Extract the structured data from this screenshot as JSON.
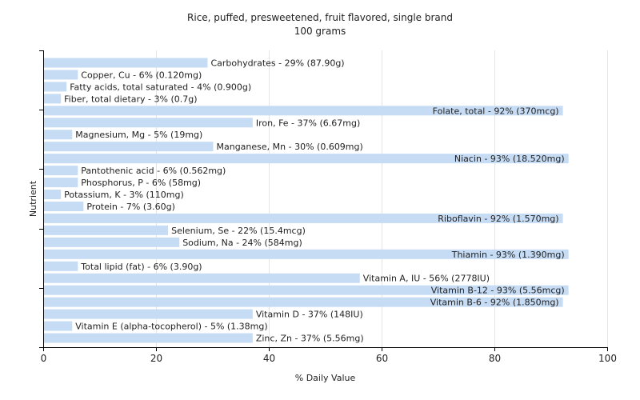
{
  "chart_data": {
    "type": "bar",
    "orientation": "horizontal",
    "title": "Rice, puffed, presweetened, fruit flavored, single brand",
    "subtitle": "100 grams",
    "xlabel": "% Daily Value",
    "ylabel": "Nutrient",
    "xlim": [
      0,
      100
    ],
    "xticks": [
      0,
      20,
      40,
      60,
      80,
      100
    ],
    "grid": true,
    "bar_color": "#c6dcf5",
    "bars": [
      {
        "label": "Carbohydrates - 29% (87.90g)",
        "value": 29
      },
      {
        "label": "Copper, Cu - 6% (0.120mg)",
        "value": 6
      },
      {
        "label": "Fatty acids, total saturated - 4% (0.900g)",
        "value": 4
      },
      {
        "label": "Fiber, total dietary - 3% (0.7g)",
        "value": 3
      },
      {
        "label": "Folate, total - 92% (370mcg)",
        "value": 92
      },
      {
        "label": "Iron, Fe - 37% (6.67mg)",
        "value": 37
      },
      {
        "label": "Magnesium, Mg - 5% (19mg)",
        "value": 5
      },
      {
        "label": "Manganese, Mn - 30% (0.609mg)",
        "value": 30
      },
      {
        "label": "Niacin - 93% (18.520mg)",
        "value": 93
      },
      {
        "label": "Pantothenic acid - 6% (0.562mg)",
        "value": 6
      },
      {
        "label": "Phosphorus, P - 6% (58mg)",
        "value": 6
      },
      {
        "label": "Potassium, K - 3% (110mg)",
        "value": 3
      },
      {
        "label": "Protein - 7% (3.60g)",
        "value": 7
      },
      {
        "label": "Riboflavin - 92% (1.570mg)",
        "value": 92
      },
      {
        "label": "Selenium, Se - 22% (15.4mcg)",
        "value": 22
      },
      {
        "label": "Sodium, Na - 24% (584mg)",
        "value": 24
      },
      {
        "label": "Thiamin - 93% (1.390mg)",
        "value": 93
      },
      {
        "label": "Total lipid (fat) - 6% (3.90g)",
        "value": 6
      },
      {
        "label": "Vitamin A, IU - 56% (2778IU)",
        "value": 56
      },
      {
        "label": "Vitamin B-12 - 93% (5.56mcg)",
        "value": 93
      },
      {
        "label": "Vitamin B-6 - 92% (1.850mg)",
        "value": 92
      },
      {
        "label": "Vitamin D - 37% (148IU)",
        "value": 37
      },
      {
        "label": "Vitamin E (alpha-tocopherol) - 5% (1.38mg)",
        "value": 5
      },
      {
        "label": "Zinc, Zn - 37% (5.56mg)",
        "value": 37
      }
    ]
  }
}
